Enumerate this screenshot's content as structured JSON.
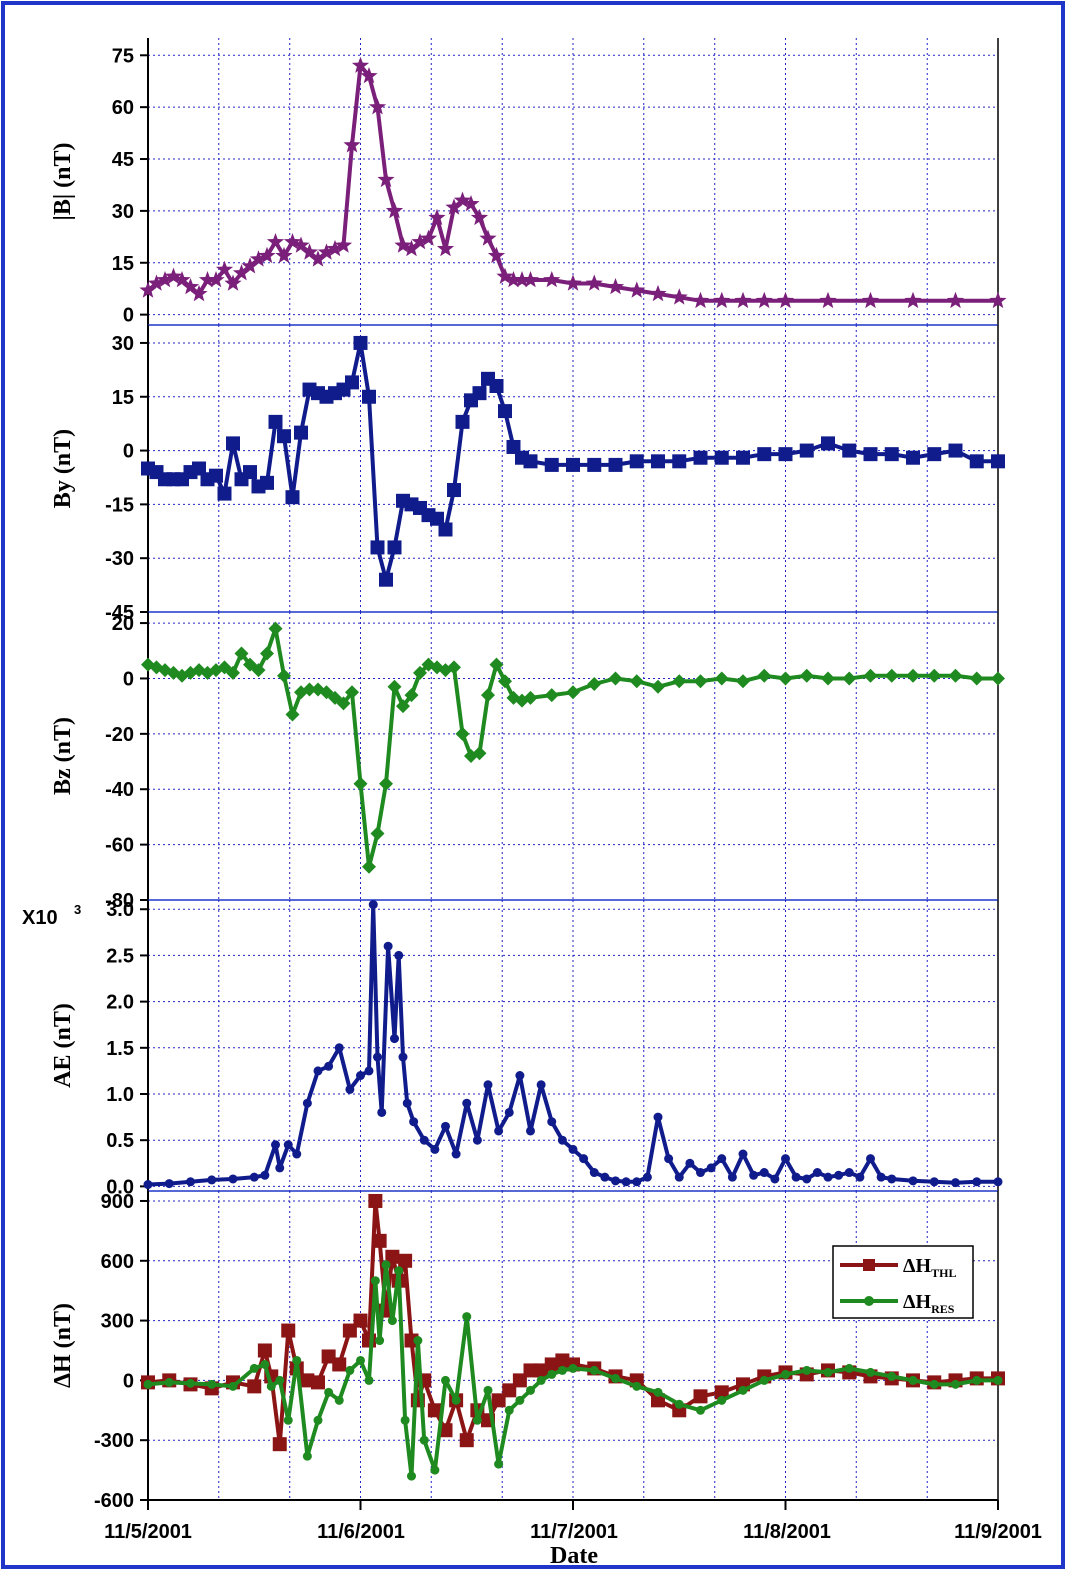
{
  "figure": {
    "xlabel": "Date",
    "x_ticks": [
      "11/5/2001",
      "11/6/2001",
      "11/7/2001",
      "11/8/2001",
      "11/9/2001"
    ],
    "colors": {
      "frame": "#1f36c8",
      "grid": "#2323c8",
      "axis": "#000000"
    }
  },
  "chart_data": [
    {
      "type": "line",
      "ylabel": "|B| (nT)",
      "ylim": [
        -3,
        80
      ],
      "yticks": [
        0,
        15,
        30,
        45,
        60,
        75
      ],
      "grid": true,
      "series": [
        {
          "marker": "star",
          "color": "#7a1f7a",
          "x": [
            5.0,
            5.04,
            5.08,
            5.12,
            5.16,
            5.2,
            5.24,
            5.28,
            5.32,
            5.36,
            5.4,
            5.44,
            5.48,
            5.52,
            5.56,
            5.6,
            5.64,
            5.68,
            5.72,
            5.76,
            5.8,
            5.84,
            5.88,
            5.92,
            5.96,
            6.0,
            6.04,
            6.08,
            6.12,
            6.16,
            6.2,
            6.24,
            6.28,
            6.32,
            6.36,
            6.4,
            6.44,
            6.48,
            6.52,
            6.56,
            6.6,
            6.64,
            6.68,
            6.72,
            6.76,
            6.8,
            6.9,
            7.0,
            7.1,
            7.2,
            7.3,
            7.4,
            7.5,
            7.6,
            7.7,
            7.8,
            7.9,
            8.0,
            8.2,
            8.4,
            8.6,
            8.8,
            9.0
          ],
          "y": [
            7,
            9,
            10,
            11,
            10,
            8,
            6,
            10,
            10,
            13,
            9,
            12,
            14,
            16,
            17,
            21,
            17,
            21,
            20,
            18,
            16,
            18,
            19,
            20,
            49,
            72,
            69,
            60,
            39,
            30,
            20,
            19,
            21,
            22,
            28,
            19,
            31,
            33,
            32,
            28,
            22,
            17,
            11,
            10,
            10,
            10,
            10,
            9,
            9,
            8,
            7,
            6,
            5,
            4,
            4,
            4,
            4,
            4,
            4,
            4,
            4,
            4,
            4
          ]
        }
      ]
    },
    {
      "type": "line",
      "ylabel": "By (nT)",
      "ylim": [
        -45,
        35
      ],
      "yticks": [
        -45,
        -30,
        -15,
        0,
        15,
        30
      ],
      "grid": true,
      "series": [
        {
          "marker": "square",
          "color": "#101c8c",
          "x": [
            5.0,
            5.04,
            5.08,
            5.12,
            5.16,
            5.2,
            5.24,
            5.28,
            5.32,
            5.36,
            5.4,
            5.44,
            5.48,
            5.52,
            5.56,
            5.6,
            5.64,
            5.68,
            5.72,
            5.76,
            5.8,
            5.84,
            5.88,
            5.92,
            5.96,
            6.0,
            6.04,
            6.08,
            6.12,
            6.16,
            6.2,
            6.24,
            6.28,
            6.32,
            6.36,
            6.4,
            6.44,
            6.48,
            6.52,
            6.56,
            6.6,
            6.64,
            6.68,
            6.72,
            6.76,
            6.8,
            6.9,
            7.0,
            7.1,
            7.2,
            7.3,
            7.4,
            7.5,
            7.6,
            7.7,
            7.8,
            7.9,
            8.0,
            8.1,
            8.2,
            8.3,
            8.4,
            8.5,
            8.6,
            8.7,
            8.8,
            8.9,
            9.0
          ],
          "y": [
            -5,
            -6,
            -8,
            -8,
            -8,
            -6,
            -5,
            -8,
            -7,
            -12,
            2,
            -8,
            -6,
            -10,
            -9,
            8,
            4,
            -13,
            5,
            17,
            16,
            15,
            16,
            17,
            19,
            30,
            15,
            -27,
            -36,
            -27,
            -14,
            -15,
            -16,
            -18,
            -19,
            -22,
            -11,
            8,
            14,
            16,
            20,
            18,
            11,
            1,
            -2,
            -3,
            -4,
            -4,
            -4,
            -4,
            -3,
            -3,
            -3,
            -2,
            -2,
            -2,
            -1,
            -1,
            0,
            2,
            0,
            -1,
            -1,
            -2,
            -1,
            0,
            -3,
            -3
          ]
        }
      ]
    },
    {
      "type": "line",
      "ylabel": "Bz (nT)",
      "ylim": [
        -80,
        24
      ],
      "yticks": [
        -80,
        -60,
        -40,
        -20,
        0,
        20
      ],
      "grid": true,
      "series": [
        {
          "marker": "diamond",
          "color": "#1f8a1f",
          "x": [
            5.0,
            5.04,
            5.08,
            5.12,
            5.16,
            5.2,
            5.24,
            5.28,
            5.32,
            5.36,
            5.4,
            5.44,
            5.48,
            5.52,
            5.56,
            5.6,
            5.64,
            5.68,
            5.72,
            5.76,
            5.8,
            5.84,
            5.88,
            5.92,
            5.96,
            6.0,
            6.04,
            6.08,
            6.12,
            6.16,
            6.2,
            6.24,
            6.28,
            6.32,
            6.36,
            6.4,
            6.44,
            6.48,
            6.52,
            6.56,
            6.6,
            6.64,
            6.68,
            6.72,
            6.76,
            6.8,
            6.9,
            7.0,
            7.1,
            7.2,
            7.3,
            7.4,
            7.5,
            7.6,
            7.7,
            7.8,
            7.9,
            8.0,
            8.1,
            8.2,
            8.3,
            8.4,
            8.5,
            8.6,
            8.7,
            8.8,
            8.9,
            9.0
          ],
          "y": [
            5,
            4,
            3,
            2,
            1,
            2,
            3,
            2,
            3,
            4,
            2,
            9,
            5,
            3,
            9,
            18,
            1,
            -13,
            -5,
            -4,
            -4,
            -5,
            -7,
            -9,
            -5,
            -38,
            -68,
            -56,
            -38,
            -3,
            -10,
            -6,
            2,
            5,
            4,
            3,
            4,
            -20,
            -28,
            -27,
            -6,
            5,
            -1,
            -7,
            -8,
            -7,
            -6,
            -5,
            -2,
            0,
            -1,
            -3,
            -1,
            -1,
            0,
            -1,
            1,
            0,
            1,
            0,
            0,
            1,
            1,
            1,
            1,
            1,
            0,
            0
          ]
        }
      ]
    },
    {
      "type": "line",
      "ylabel": "AE (nT)",
      "multiplier_label": "X10",
      "multiplier_exp": "3",
      "ylim": [
        -0.05,
        3.1
      ],
      "yticks": [
        0.0,
        0.5,
        1.0,
        1.5,
        2.0,
        2.5,
        3.0
      ],
      "ytick_labels": [
        "0.0",
        "0.5",
        "1.0",
        "1.5",
        "2.0",
        "2.5",
        "3.0"
      ],
      "grid": true,
      "series": [
        {
          "marker": "circle",
          "color": "#101c8c",
          "x": [
            5.0,
            5.1,
            5.2,
            5.3,
            5.4,
            5.5,
            5.55,
            5.6,
            5.62,
            5.66,
            5.7,
            5.75,
            5.8,
            5.85,
            5.9,
            5.95,
            6.0,
            6.04,
            6.06,
            6.08,
            6.1,
            6.13,
            6.16,
            6.18,
            6.2,
            6.22,
            6.25,
            6.3,
            6.35,
            6.4,
            6.45,
            6.5,
            6.55,
            6.6,
            6.65,
            6.7,
            6.75,
            6.8,
            6.85,
            6.9,
            6.95,
            7.0,
            7.05,
            7.1,
            7.15,
            7.2,
            7.25,
            7.3,
            7.35,
            7.4,
            7.45,
            7.5,
            7.55,
            7.6,
            7.65,
            7.7,
            7.75,
            7.8,
            7.85,
            7.9,
            7.95,
            8.0,
            8.05,
            8.1,
            8.15,
            8.2,
            8.25,
            8.3,
            8.35,
            8.4,
            8.45,
            8.5,
            8.6,
            8.7,
            8.8,
            8.9,
            9.0
          ],
          "y": [
            0.02,
            0.03,
            0.05,
            0.07,
            0.08,
            0.1,
            0.12,
            0.45,
            0.2,
            0.45,
            0.35,
            0.9,
            1.25,
            1.3,
            1.5,
            1.05,
            1.2,
            1.25,
            3.05,
            1.4,
            0.8,
            2.6,
            1.6,
            2.5,
            1.4,
            0.9,
            0.7,
            0.5,
            0.4,
            0.65,
            0.35,
            0.9,
            0.5,
            1.1,
            0.6,
            0.8,
            1.2,
            0.6,
            1.1,
            0.7,
            0.5,
            0.4,
            0.3,
            0.15,
            0.1,
            0.06,
            0.05,
            0.05,
            0.1,
            0.75,
            0.3,
            0.1,
            0.25,
            0.15,
            0.2,
            0.3,
            0.1,
            0.35,
            0.12,
            0.15,
            0.08,
            0.3,
            0.1,
            0.08,
            0.15,
            0.1,
            0.12,
            0.15,
            0.1,
            0.3,
            0.1,
            0.08,
            0.06,
            0.05,
            0.04,
            0.05,
            0.05
          ]
        }
      ]
    },
    {
      "type": "line",
      "ylabel": "ΔH (nT)",
      "ylim": [
        -600,
        950
      ],
      "yticks": [
        -600,
        -300,
        0,
        300,
        600,
        900
      ],
      "grid": true,
      "legend": "top-right",
      "series": [
        {
          "name": "ΔH",
          "name_sub": "THL",
          "marker": "square",
          "color": "#8b1414",
          "x": [
            5.0,
            5.1,
            5.2,
            5.3,
            5.4,
            5.5,
            5.55,
            5.58,
            5.62,
            5.66,
            5.7,
            5.75,
            5.8,
            5.85,
            5.9,
            5.95,
            6.0,
            6.04,
            6.07,
            6.09,
            6.12,
            6.15,
            6.18,
            6.21,
            6.24,
            6.27,
            6.3,
            6.35,
            6.4,
            6.45,
            6.5,
            6.55,
            6.6,
            6.65,
            6.7,
            6.75,
            6.8,
            6.85,
            6.9,
            6.95,
            7.0,
            7.1,
            7.2,
            7.3,
            7.4,
            7.5,
            7.6,
            7.7,
            7.8,
            7.9,
            8.0,
            8.1,
            8.2,
            8.3,
            8.4,
            8.5,
            8.6,
            8.7,
            8.8,
            8.9,
            9.0
          ],
          "y": [
            -10,
            0,
            -20,
            -40,
            -10,
            -30,
            150,
            20,
            -320,
            250,
            60,
            0,
            -10,
            120,
            80,
            250,
            300,
            200,
            900,
            700,
            350,
            620,
            500,
            600,
            200,
            -100,
            0,
            -150,
            -250,
            -100,
            -300,
            -150,
            -200,
            -100,
            -50,
            0,
            50,
            50,
            80,
            100,
            80,
            60,
            20,
            0,
            -100,
            -150,
            -80,
            -60,
            -20,
            20,
            40,
            30,
            50,
            40,
            20,
            10,
            0,
            -10,
            0,
            10,
            10
          ]
        },
        {
          "name": "ΔH",
          "name_sub": "RES",
          "marker": "circle",
          "color": "#1f8a1f",
          "x": [
            5.0,
            5.1,
            5.2,
            5.3,
            5.4,
            5.5,
            5.55,
            5.58,
            5.62,
            5.66,
            5.7,
            5.75,
            5.8,
            5.85,
            5.9,
            5.95,
            6.0,
            6.04,
            6.07,
            6.09,
            6.12,
            6.15,
            6.18,
            6.21,
            6.24,
            6.27,
            6.3,
            6.35,
            6.4,
            6.45,
            6.5,
            6.55,
            6.6,
            6.65,
            6.7,
            6.75,
            6.8,
            6.85,
            6.9,
            6.95,
            7.0,
            7.1,
            7.2,
            7.3,
            7.4,
            7.5,
            7.6,
            7.7,
            7.8,
            7.9,
            8.0,
            8.1,
            8.2,
            8.3,
            8.4,
            8.5,
            8.6,
            8.7,
            8.8,
            8.9,
            9.0
          ],
          "y": [
            -20,
            -10,
            -15,
            -20,
            -30,
            60,
            80,
            -30,
            0,
            -200,
            100,
            -380,
            -200,
            -60,
            -100,
            50,
            100,
            0,
            500,
            200,
            580,
            300,
            550,
            -200,
            -480,
            200,
            -300,
            -450,
            0,
            -100,
            320,
            -200,
            -50,
            -420,
            -150,
            -100,
            -50,
            0,
            30,
            50,
            60,
            50,
            10,
            -30,
            -60,
            -120,
            -150,
            -100,
            -50,
            0,
            30,
            50,
            40,
            60,
            40,
            20,
            0,
            -20,
            -20,
            0,
            0
          ]
        }
      ]
    }
  ]
}
